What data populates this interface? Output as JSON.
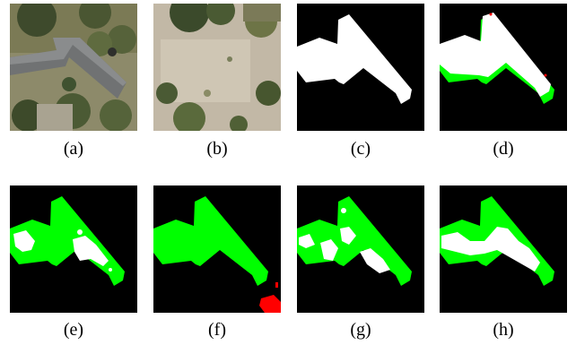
{
  "panels": [
    {
      "label": "(a)",
      "content": "aerial-photo-building"
    },
    {
      "label": "(b)",
      "content": "aerial-photo-cleared-lot"
    },
    {
      "label": "(c)",
      "content": "ground-truth-mask"
    },
    {
      "label": "(d)",
      "content": "prediction-overlay"
    },
    {
      "label": "(e)",
      "content": "prediction-overlay"
    },
    {
      "label": "(f)",
      "content": "prediction-overlay"
    },
    {
      "label": "(g)",
      "content": "prediction-overlay"
    },
    {
      "label": "(h)",
      "content": "prediction-overlay"
    }
  ],
  "colors": {
    "background": "#000000",
    "true_positive": "#ffffff",
    "false_negative": "#00ff00",
    "false_positive": "#ff0000"
  }
}
